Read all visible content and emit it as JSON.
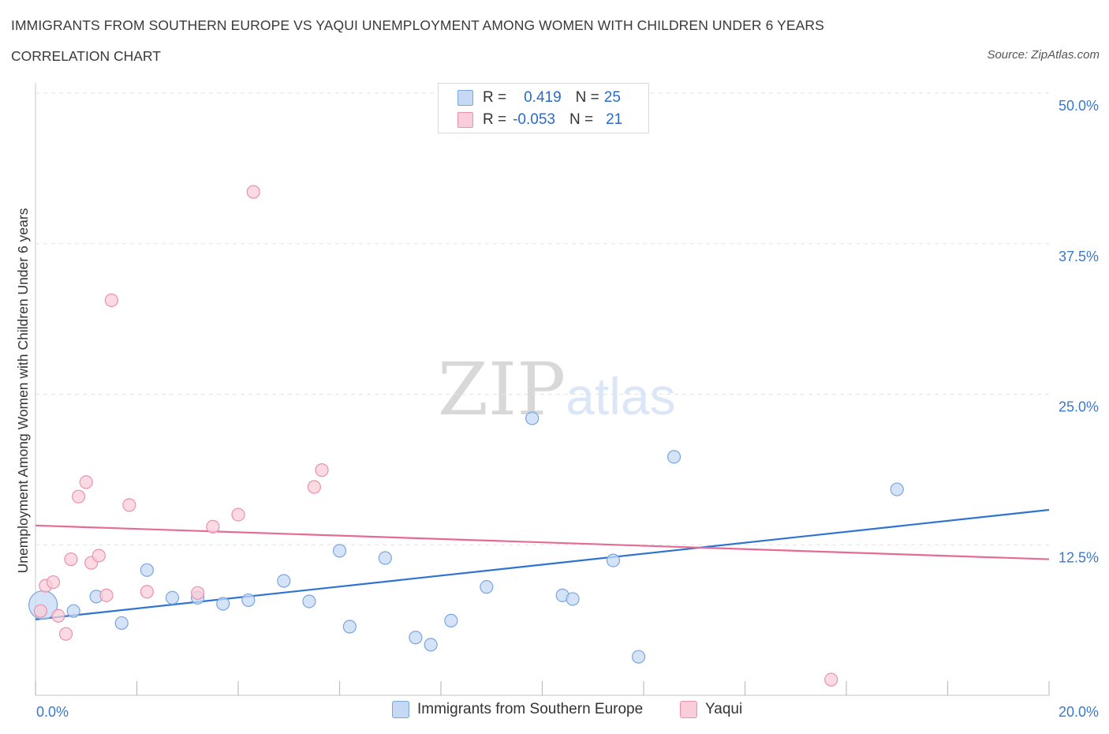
{
  "header": {
    "title": "IMMIGRANTS FROM SOUTHERN EUROPE VS YAQUI UNEMPLOYMENT AMONG WOMEN WITH CHILDREN UNDER 6 YEARS",
    "subtitle": "CORRELATION CHART",
    "source": "Source: ZipAtlas.com"
  },
  "watermark": {
    "zip": "ZIP",
    "atlas": "atlas"
  },
  "legend": {
    "rows": [
      {
        "r_label": "R =",
        "r_value": "0.419",
        "n_label": "N =",
        "n_value": "25"
      },
      {
        "r_label": "R =",
        "r_value": "-0.053",
        "n_label": "N =",
        "n_value": "21"
      }
    ]
  },
  "colors": {
    "blue_fill": "#c5d9f5",
    "blue_stroke": "#7aa5de",
    "blue_line": "#2f73d1",
    "pink_fill": "#f9cdd9",
    "pink_stroke": "#eb91ad",
    "pink_line": "#e56b96",
    "axis_text": "#3b78d0",
    "grid": "#e3e3e3"
  },
  "chart_data": {
    "type": "scatter",
    "title": "IMMIGRANTS FROM SOUTHERN EUROPE VS YAQUI UNEMPLOYMENT AMONG WOMEN WITH CHILDREN UNDER 6 YEARS",
    "xlabel": "",
    "ylabel": "Unemployment Among Women with Children Under 6 years",
    "xlim": [
      0,
      20
    ],
    "ylim": [
      0,
      50
    ],
    "x_tick_labels": [
      "0.0%",
      "20.0%"
    ],
    "y_ticks": [
      12.5,
      25.0,
      37.5,
      50.0
    ],
    "y_tick_labels": [
      "12.5%",
      "25.0%",
      "37.5%",
      "50.0%"
    ],
    "grid": "horizontal dashed",
    "legend_position": "bottom",
    "series": [
      {
        "name": "Immigrants from Southern Europe",
        "color": "blue",
        "points": [
          {
            "x": 0.15,
            "y": 7.5,
            "big": true
          },
          {
            "x": 0.75,
            "y": 7.0
          },
          {
            "x": 1.2,
            "y": 8.2
          },
          {
            "x": 1.7,
            "y": 6.0
          },
          {
            "x": 2.2,
            "y": 10.4
          },
          {
            "x": 2.7,
            "y": 8.1
          },
          {
            "x": 3.2,
            "y": 8.1
          },
          {
            "x": 3.7,
            "y": 7.6
          },
          {
            "x": 4.2,
            "y": 7.9
          },
          {
            "x": 4.9,
            "y": 9.5
          },
          {
            "x": 5.4,
            "y": 7.8
          },
          {
            "x": 6.0,
            "y": 12.0
          },
          {
            "x": 6.2,
            "y": 5.7
          },
          {
            "x": 6.9,
            "y": 11.4
          },
          {
            "x": 7.5,
            "y": 4.8
          },
          {
            "x": 7.8,
            "y": 4.2
          },
          {
            "x": 8.2,
            "y": 6.2
          },
          {
            "x": 8.9,
            "y": 9.0
          },
          {
            "x": 9.8,
            "y": 23.0
          },
          {
            "x": 10.4,
            "y": 8.3
          },
          {
            "x": 10.6,
            "y": 8.0
          },
          {
            "x": 11.4,
            "y": 11.2
          },
          {
            "x": 11.9,
            "y": 3.2
          },
          {
            "x": 12.6,
            "y": 19.8
          },
          {
            "x": 17.0,
            "y": 17.1
          }
        ],
        "trend": {
          "x": [
            0,
            20
          ],
          "y": [
            6.3,
            15.4
          ]
        }
      },
      {
        "name": "Yaqui",
        "color": "pink",
        "points": [
          {
            "x": 0.1,
            "y": 7.0
          },
          {
            "x": 0.2,
            "y": 9.1
          },
          {
            "x": 0.35,
            "y": 9.4
          },
          {
            "x": 0.45,
            "y": 6.6
          },
          {
            "x": 0.6,
            "y": 5.1
          },
          {
            "x": 0.7,
            "y": 11.3
          },
          {
            "x": 0.85,
            "y": 16.5
          },
          {
            "x": 1.0,
            "y": 17.7
          },
          {
            "x": 1.1,
            "y": 11.0
          },
          {
            "x": 1.25,
            "y": 11.6
          },
          {
            "x": 1.4,
            "y": 8.3
          },
          {
            "x": 1.5,
            "y": 32.8
          },
          {
            "x": 1.85,
            "y": 15.8
          },
          {
            "x": 2.2,
            "y": 8.6
          },
          {
            "x": 3.2,
            "y": 8.5
          },
          {
            "x": 3.5,
            "y": 14.0
          },
          {
            "x": 4.0,
            "y": 15.0
          },
          {
            "x": 4.3,
            "y": 41.8
          },
          {
            "x": 5.5,
            "y": 17.3
          },
          {
            "x": 5.65,
            "y": 18.7
          },
          {
            "x": 15.7,
            "y": 1.3
          }
        ],
        "trend": {
          "x": [
            0,
            20
          ],
          "y": [
            14.1,
            11.3
          ]
        }
      }
    ]
  }
}
